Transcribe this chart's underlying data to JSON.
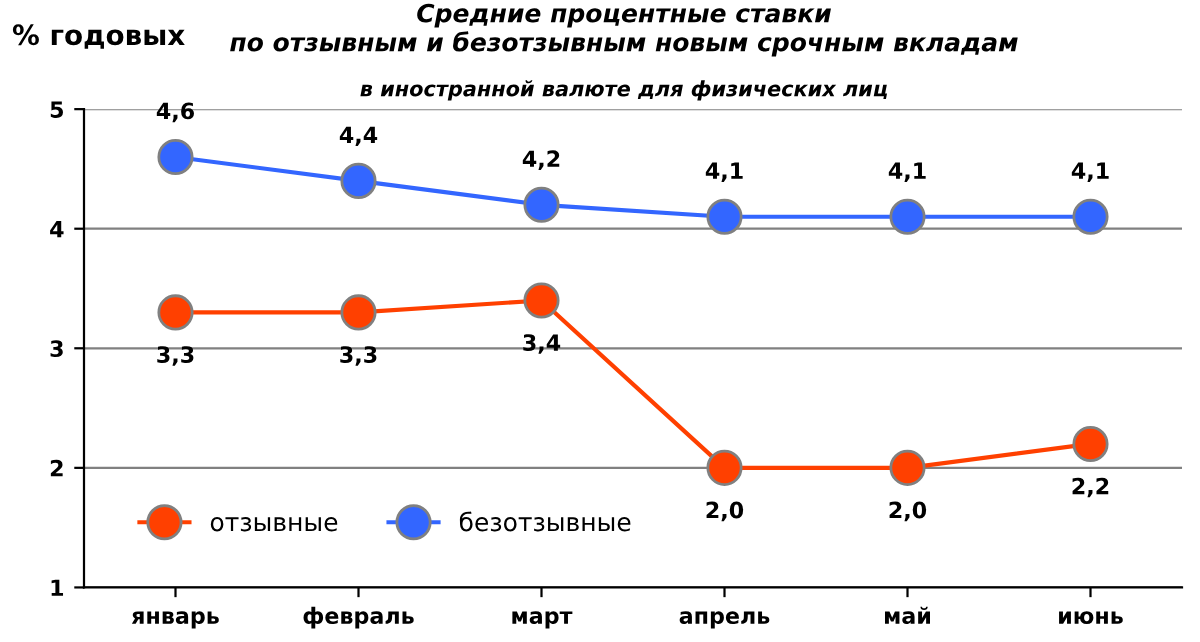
{
  "chart_data": {
    "type": "line",
    "title": "Средние процентные ставки\nпо отзывным и безотзывным новым срочным вкладам",
    "subtitle": "в иностранной валюте для физических лиц",
    "ylabel": "% годовых",
    "categories": [
      "январь",
      "февраль",
      "март",
      "апрель",
      "май",
      "июнь"
    ],
    "series": [
      {
        "name": "отзывные",
        "color": "#ff4000",
        "values": [
          3.3,
          3.3,
          3.4,
          2.0,
          2.0,
          2.2
        ],
        "value_labels": [
          "3,3",
          "3,3",
          "3,4",
          "2,0",
          "2,0",
          "2,2"
        ]
      },
      {
        "name": "безотзывные",
        "color": "#3366ff",
        "values": [
          4.6,
          4.4,
          4.2,
          4.1,
          4.1,
          4.1
        ],
        "value_labels": [
          "4,6",
          "4,4",
          "4,2",
          "4,1",
          "4,1",
          "4,1"
        ]
      }
    ],
    "ylim": [
      1,
      5
    ],
    "yticks": [
      1,
      2,
      3,
      4,
      5
    ],
    "grid": "y",
    "legend": "bottom left",
    "marker": "circle",
    "line_style": "solid"
  }
}
